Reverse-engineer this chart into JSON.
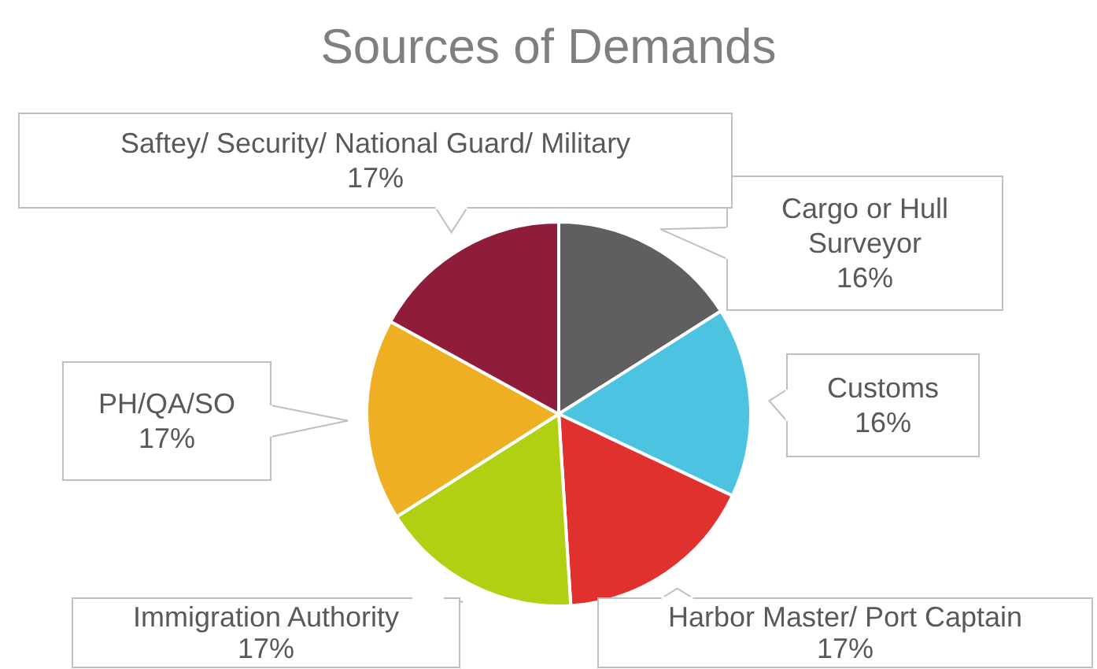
{
  "chart_data": {
    "type": "pie",
    "title": "Sources of Demands",
    "categories": [
      "Cargo or Hull Surveyor",
      "Customs",
      "Harbor Master/ Port Captain",
      "Immigration Authority",
      "PH/QA/SO",
      "Saftey/ Security/ National Guard/ Military"
    ],
    "values": [
      16,
      16,
      17,
      17,
      17,
      17
    ],
    "colors": [
      "#5f5f5f",
      "#4cc3e0",
      "#e0312e",
      "#afd112",
      "#eeb022",
      "#8e1c3a"
    ],
    "value_labels": [
      "16%",
      "16%",
      "17%",
      "17%",
      "17%",
      "17%"
    ],
    "legend": false
  }
}
